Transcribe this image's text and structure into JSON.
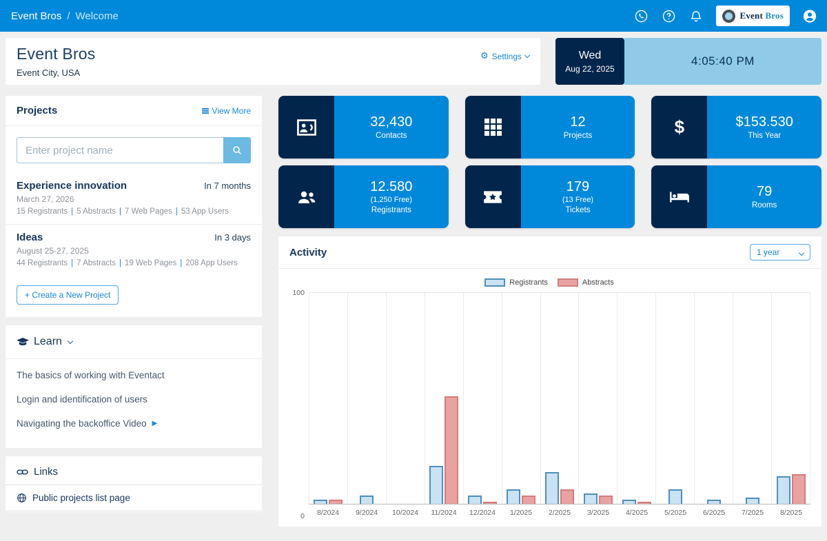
{
  "topbar": {
    "app": "Event Bros",
    "separator": "/",
    "page": "Welcome",
    "icons": [
      "whatsapp-icon",
      "help-icon",
      "notifications-icon",
      "user-icon"
    ],
    "logo_primary": "Event",
    "logo_secondary": "Bros"
  },
  "header": {
    "title": "Event Bros",
    "subtitle": "Event City, USA",
    "settings_label": "Settings"
  },
  "clock": {
    "day": "Wed",
    "date": "Aug 22, 2025",
    "time": "4:05:40 PM"
  },
  "projects_panel": {
    "title": "Projects",
    "view_more_label": "View More",
    "search_placeholder": "Enter project name",
    "create_button_label": "+ Create a New Project",
    "items": [
      {
        "name": "Experience innovation",
        "due": "In 7 months",
        "date": "March 27, 2026",
        "stats": [
          "15 Registrants",
          "5 Abstracts",
          "7 Web Pages",
          "53 App Users"
        ]
      },
      {
        "name": "Ideas",
        "due": "In 3 days",
        "date": "August 25-27, 2025",
        "stats": [
          "44 Registrants",
          "7 Abstracts",
          "19 Web Pages",
          "208 App Users"
        ]
      }
    ]
  },
  "learn_panel": {
    "title": "Learn",
    "icon": "graduation-cap-icon",
    "links": [
      {
        "label": "The basics of working with Eventact",
        "has_play": false
      },
      {
        "label": "Login and identification of users",
        "has_play": false
      },
      {
        "label": "Navigating the backoffice Video",
        "has_play": true
      }
    ]
  },
  "links_panel": {
    "title": "Links",
    "icon": "chain-link-icon",
    "links": [
      {
        "label": "Public projects list page",
        "icon": "globe-icon"
      }
    ]
  },
  "stats": [
    {
      "icon": "contacts-card-icon",
      "value": "32,430",
      "sub": "",
      "label": "Contacts"
    },
    {
      "icon": "grid-icon",
      "value": "12",
      "sub": "",
      "label": "Projects"
    },
    {
      "icon": "dollar-icon",
      "value": "$153.530",
      "sub": "",
      "label": "This Year"
    },
    {
      "icon": "people-icon",
      "value": "12.580",
      "sub": "(1,250 Free)",
      "label": "Registrants"
    },
    {
      "icon": "ticket-icon",
      "value": "179",
      "sub": "(13 Free)",
      "label": "Tickets"
    },
    {
      "icon": "bed-icon",
      "value": "79",
      "sub": "",
      "label": "Rooms"
    }
  ],
  "activity": {
    "title": "Activity",
    "range_value": "1 year"
  },
  "chart_data": {
    "type": "bar",
    "title": "Activity",
    "categories": [
      "8/2024",
      "9/2024",
      "10/2024",
      "11/2024",
      "12/2024",
      "1/2025",
      "2/2025",
      "3/2025",
      "4/2025",
      "5/2025",
      "6/2025",
      "7/2025",
      "8/2025"
    ],
    "series": [
      {
        "name": "Registrants",
        "fill": "#c9e2f4",
        "stroke": "#4e8fbc",
        "values": [
          2,
          4,
          0,
          18,
          4,
          7,
          15,
          5,
          2,
          7,
          2,
          3,
          13
        ]
      },
      {
        "name": "Abstracts",
        "fill": "#e8a2a2",
        "stroke": "#d47c7c",
        "values": [
          2,
          0,
          0,
          51,
          1,
          4,
          7,
          4,
          1,
          0,
          0,
          0,
          14
        ]
      }
    ],
    "ylim": [
      0,
      100
    ],
    "yticks": [
      0,
      100
    ],
    "legend_position": "top",
    "gridlines": "vertical"
  },
  "colors": {
    "accent_blue": "#0089db",
    "navy": "#02254b",
    "light_blue": "#8fcbe8",
    "link_blue": "#1b87d7",
    "page_background": "#efefef"
  }
}
